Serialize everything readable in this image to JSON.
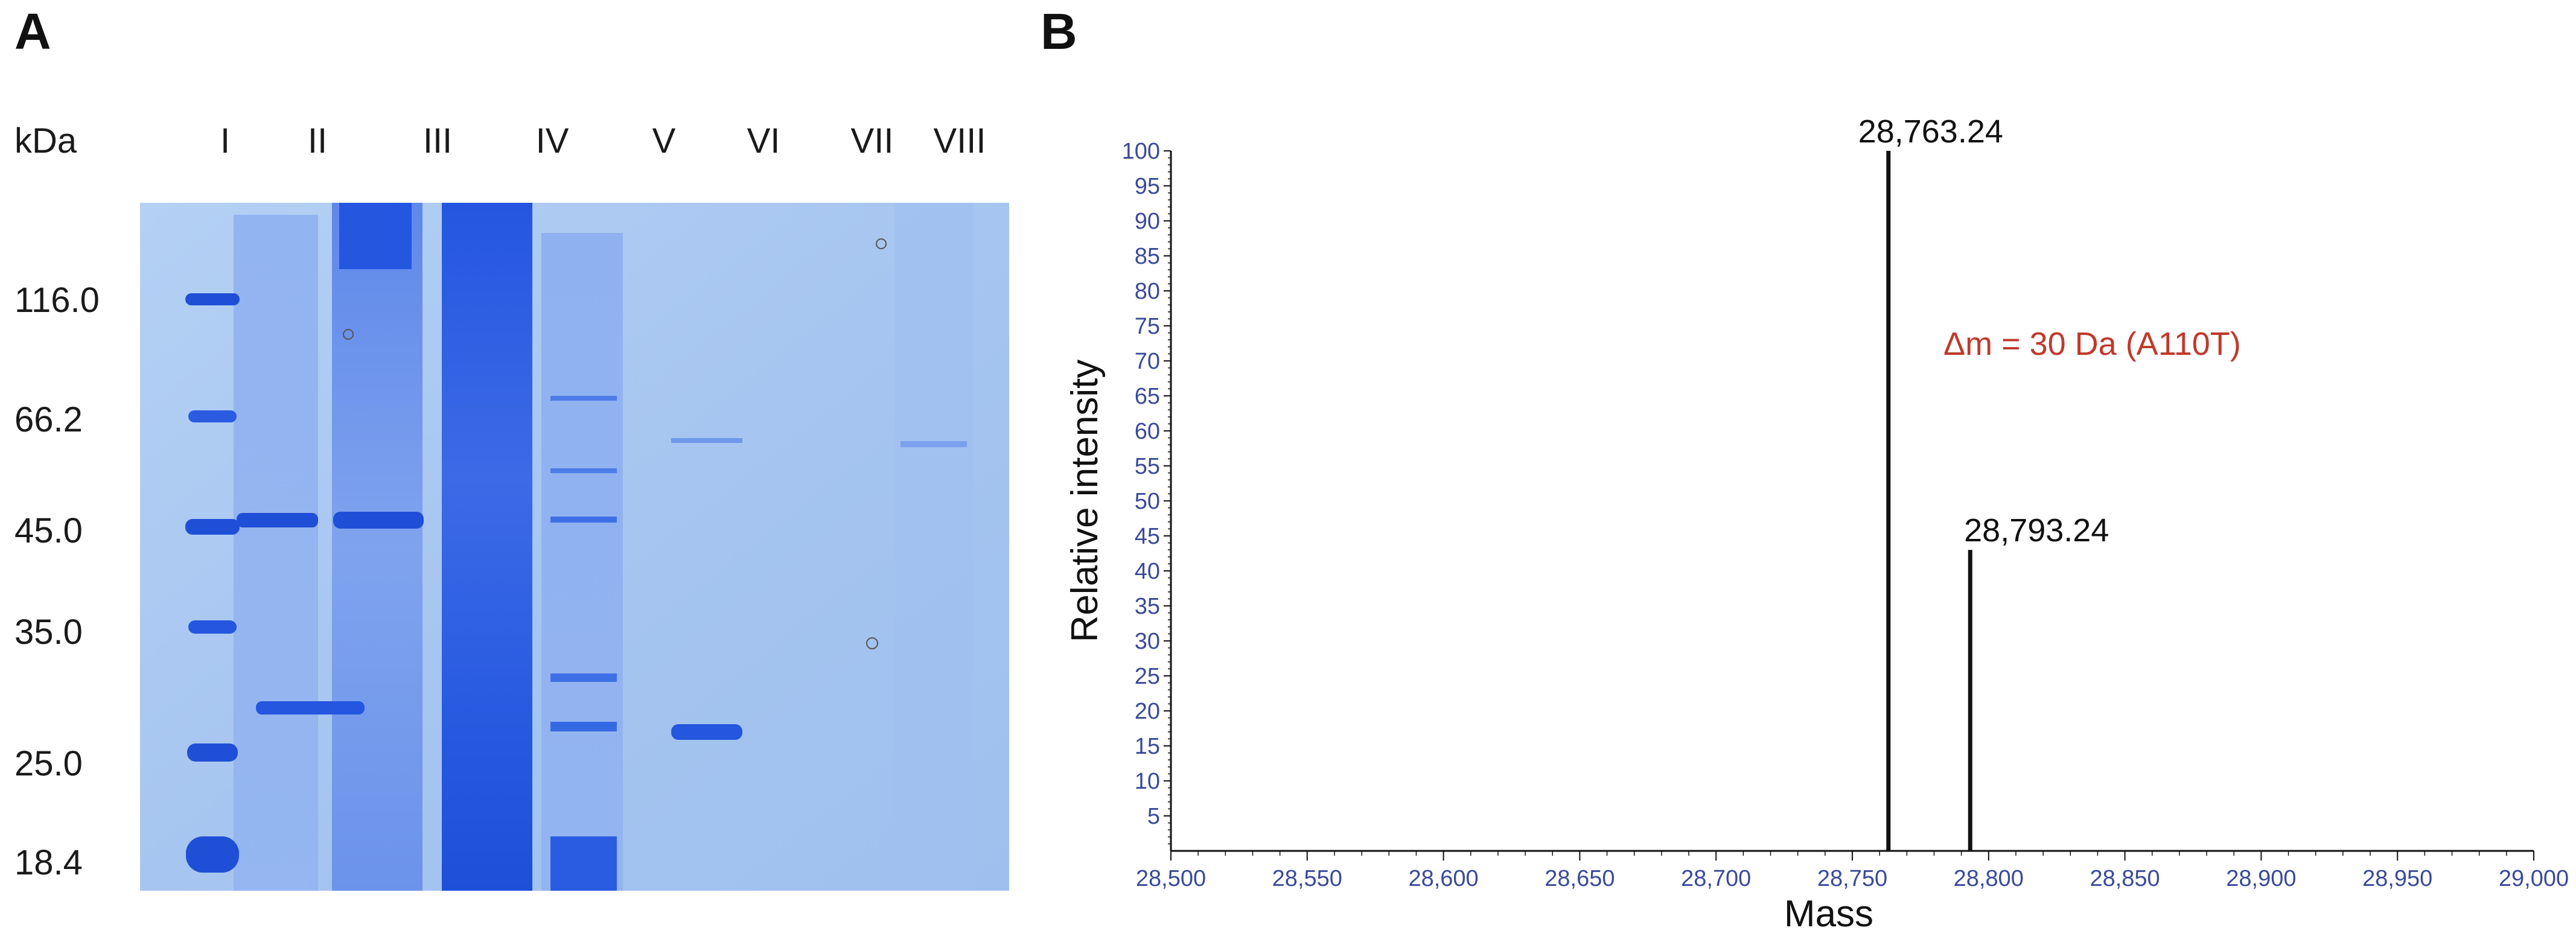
{
  "panels": {
    "a": {
      "letter": "A"
    },
    "b": {
      "letter": "B"
    }
  },
  "gel": {
    "unit_label": "kDa",
    "lanes": [
      "I",
      "II",
      "III",
      "IV",
      "V",
      "VI",
      "VII",
      "VIII"
    ],
    "markers": [
      "116.0",
      "66.2",
      "45.0",
      "35.0",
      "25.0",
      "18.4"
    ],
    "colors": {
      "background": "#a8c7f0",
      "band": "#1f4fd6",
      "heavy": "#2a5be0"
    }
  },
  "chart_data": {
    "type": "bar",
    "xlabel": "Mass",
    "ylabel": "Relative intensity",
    "xlim": [
      28500,
      29000
    ],
    "ylim": [
      0,
      100
    ],
    "x_ticks": [
      "28,500",
      "28,550",
      "28,600",
      "28,650",
      "28,700",
      "28,750",
      "28,800",
      "28,850",
      "28,900",
      "28,950",
      "29,000"
    ],
    "y_ticks": [
      "5",
      "10",
      "15",
      "20",
      "25",
      "30",
      "35",
      "40",
      "45",
      "50",
      "55",
      "60",
      "65",
      "70",
      "75",
      "80",
      "85",
      "90",
      "95",
      "100"
    ],
    "peaks": [
      {
        "x": 28763.24,
        "y": 100,
        "label": "28,763.24"
      },
      {
        "x": 28793.24,
        "y": 43,
        "label": "28,793.24"
      }
    ],
    "annotation": "Δm = 30 Da (A110T)",
    "grid": false,
    "colors": {
      "tick_text": "#3a4a9a",
      "annotation": "#c0392b",
      "peak": "#111111"
    }
  }
}
